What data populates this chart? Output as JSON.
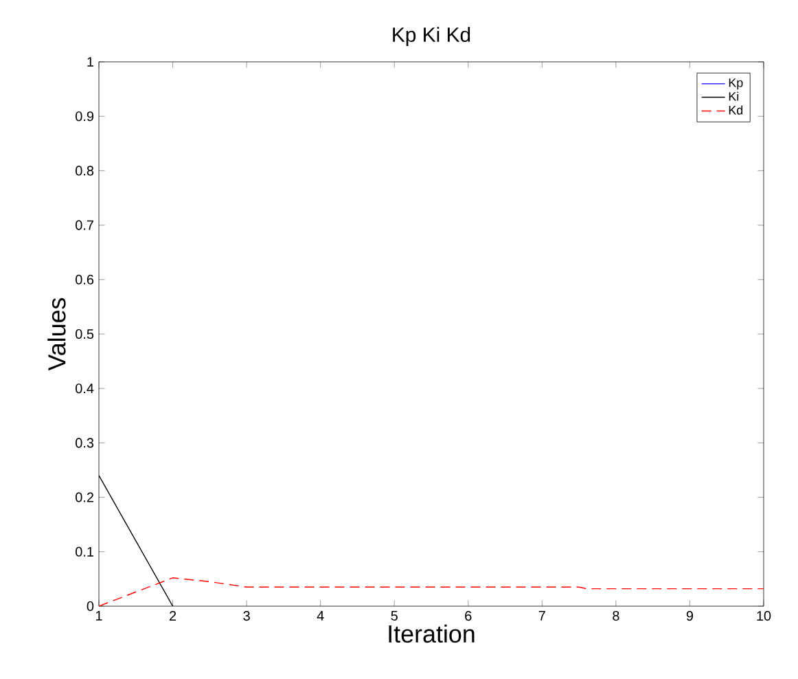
{
  "chart_data": {
    "type": "line",
    "title": "Kp Ki Kd",
    "xlabel": "Iteration",
    "ylabel": "Values",
    "xlim": [
      1,
      10
    ],
    "ylim": [
      0,
      1
    ],
    "xticks": [
      1,
      2,
      3,
      4,
      5,
      6,
      7,
      8,
      9,
      10
    ],
    "yticks": [
      0,
      0.1,
      0.2,
      0.3,
      0.4,
      0.5,
      0.6,
      0.7,
      0.8,
      0.9,
      1
    ],
    "legend": "top right",
    "grid": false,
    "series": [
      {
        "name": "Kp",
        "color": "#0000ff",
        "line_style": "solid",
        "values": [
          null,
          null,
          null,
          null,
          null,
          null,
          null,
          null,
          null,
          null
        ]
      },
      {
        "name": "Ki",
        "color": "#000000",
        "line_style": "solid",
        "x": [
          1,
          2
        ],
        "values": [
          0.24,
          0
        ]
      },
      {
        "name": "Kd",
        "color": "#ff0000",
        "line_style": "dashed",
        "x": [
          1,
          2,
          2.5,
          3,
          4,
          5,
          6,
          7,
          7.5,
          7.6,
          8,
          9,
          10
        ],
        "values": [
          0,
          0.052,
          0.045,
          0.035,
          0.035,
          0.035,
          0.035,
          0.035,
          0.035,
          0.032,
          0.032,
          0.032,
          0.032
        ]
      }
    ]
  }
}
